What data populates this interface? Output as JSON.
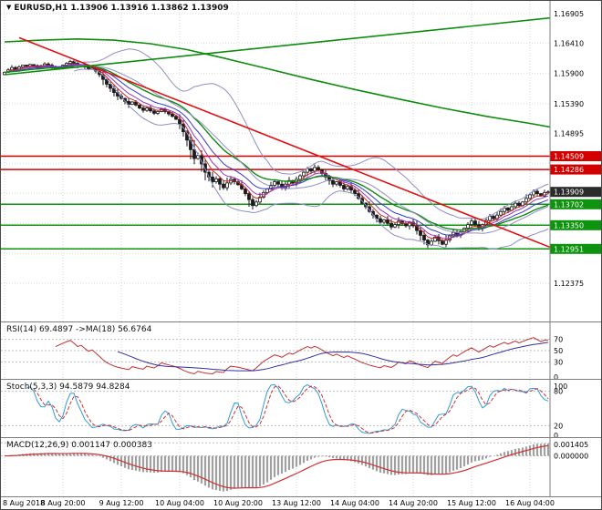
{
  "header": {
    "symbol": "EURUSD,H1",
    "ohlc": "1.13906 1.13916 1.13862 1.13909",
    "dropdown_glyph": "▼"
  },
  "panels": {
    "rsi": {
      "title": "RSI(14) 69.4897 ->MA(18) 56.6764"
    },
    "stoch": {
      "title": "Stoch(5,3,3) 94.5879 94.8284"
    },
    "macd": {
      "title": "MACD(12,26,9) 0.001147 0.000383"
    }
  },
  "chart_data": [
    {
      "type": "candlestick",
      "title": "EURUSD,H1",
      "ylim": [
        1.11732,
        1.17119
      ],
      "x_label_interval": 16,
      "x_labels": [
        "8 Aug 2018",
        "8 Aug 20:00",
        "9 Aug 12:00",
        "10 Aug 04:00",
        "10 Aug 20:00",
        "13 Aug 12:00",
        "14 Aug 04:00",
        "14 Aug 20:00",
        "15 Aug 12:00",
        "16 Aug 04:00"
      ],
      "closes": [
        1.1592,
        1.1596,
        1.16,
        1.1597,
        1.1601,
        1.1604,
        1.1602,
        1.1605,
        1.1603,
        1.16,
        1.1603,
        1.1606,
        1.1604,
        1.1601,
        1.1598,
        1.1601,
        1.1604,
        1.1607,
        1.161,
        1.1607,
        1.1603,
        1.1605,
        1.1601,
        1.1597,
        1.1599,
        1.1594,
        1.1588,
        1.158,
        1.1572,
        1.1565,
        1.1558,
        1.1552,
        1.1548,
        1.1543,
        1.1538,
        1.1542,
        1.1537,
        1.1532,
        1.1528,
        1.1532,
        1.1527,
        1.1523,
        1.1526,
        1.153,
        1.1526,
        1.1522,
        1.1518,
        1.1513,
        1.1505,
        1.1492,
        1.1478,
        1.1462,
        1.1447,
        1.1452,
        1.1438,
        1.1424,
        1.1416,
        1.1408,
        1.1413,
        1.1404,
        1.1398,
        1.1406,
        1.1412,
        1.1408,
        1.1403,
        1.1396,
        1.1388,
        1.1378,
        1.1368,
        1.1374,
        1.1382,
        1.139,
        1.1396,
        1.1402,
        1.1408,
        1.1404,
        1.1398,
        1.1404,
        1.141,
        1.1406,
        1.1412,
        1.1418,
        1.1424,
        1.143,
        1.1426,
        1.1432,
        1.1428,
        1.1422,
        1.1416,
        1.141,
        1.1404,
        1.1408,
        1.1402,
        1.1396,
        1.14,
        1.1394,
        1.1388,
        1.138,
        1.1372,
        1.1366,
        1.1358,
        1.1352,
        1.1346,
        1.134,
        1.1344,
        1.1338,
        1.1332,
        1.1336,
        1.1342,
        1.1338,
        1.1334,
        1.134,
        1.1334,
        1.1326,
        1.1318,
        1.131,
        1.1302,
        1.1308,
        1.1315,
        1.1309,
        1.1303,
        1.131,
        1.1317,
        1.1323,
        1.1318,
        1.1324,
        1.133,
        1.1336,
        1.1342,
        1.1336,
        1.133,
        1.1336,
        1.1343,
        1.135,
        1.1346,
        1.1352,
        1.1358,
        1.1364,
        1.136,
        1.1366,
        1.1372,
        1.1368,
        1.1374,
        1.138,
        1.1386,
        1.1392,
        1.1388,
        1.1384,
        1.139,
        1.1391
      ],
      "wick_scale": 0.00028,
      "y_grid": [
        1.16905,
        1.1641,
        1.159,
        1.1539,
        1.14895,
        1.1439,
        1.13885,
        1.1338,
        1.12875,
        1.12375
      ],
      "y_axis_labels": [
        {
          "v": 1.16905,
          "t": "1.16905"
        },
        {
          "v": 1.1641,
          "t": "1.16410"
        },
        {
          "v": 1.159,
          "t": "1.15900"
        },
        {
          "v": 1.1539,
          "t": "1.15390"
        },
        {
          "v": 1.14895,
          "t": "1.14895"
        },
        {
          "v": 1.12375,
          "t": "1.12375"
        }
      ],
      "price_levels": [
        {
          "value": 1.14509,
          "label": "1.14509",
          "color": "#d40000",
          "kind": "resistance"
        },
        {
          "value": 1.14286,
          "label": "1.14286",
          "color": "#d40000",
          "kind": "resistance"
        },
        {
          "value": 1.13702,
          "label": "1.13702",
          "color": "#0d930d",
          "kind": "support"
        },
        {
          "value": 1.1335,
          "label": "1.13350",
          "color": "#0d930d",
          "kind": "support"
        },
        {
          "value": 1.12951,
          "label": "1.12951",
          "color": "#0d930d",
          "kind": "support"
        }
      ],
      "current_price": {
        "value": 1.13909,
        "label": "1.13909",
        "bg": "#2b2b2b"
      },
      "colors": {
        "bull_fill": "#ffffff",
        "bear_fill": "#1a1a1a",
        "candle_stroke": "#1a1a1a",
        "grid": "#d9d9d9"
      },
      "overlays": [
        {
          "name": "ema-fast-red",
          "type": "ema",
          "period": 5,
          "color": "#cc2a2a",
          "width": 1
        },
        {
          "name": "ema-fast-purple",
          "type": "ema",
          "period": 8,
          "color": "#9933bb",
          "width": 1
        },
        {
          "name": "ema-fast-blue",
          "type": "ema",
          "period": 13,
          "color": "#3a3acc",
          "width": 1
        },
        {
          "name": "ema-mid-green",
          "type": "ema",
          "period": 21,
          "color": "#128a12",
          "width": 1.4
        },
        {
          "name": "bollinger-bands",
          "type": "bollinger",
          "period": 20,
          "dev": 2,
          "color": "#8f8fc4",
          "width": 1
        }
      ],
      "polylines": [
        {
          "name": "slow-ma-green",
          "color": "#0e8c0e",
          "width": 1.6,
          "points": [
            [
              0,
              1.1643
            ],
            [
              10,
              1.1646
            ],
            [
              20,
              1.1648
            ],
            [
              30,
              1.1646
            ],
            [
              40,
              1.164
            ],
            [
              50,
              1.163
            ],
            [
              60,
              1.1616
            ],
            [
              72,
              1.1598
            ],
            [
              84,
              1.158
            ],
            [
              96,
              1.1563
            ],
            [
              108,
              1.1547
            ],
            [
              120,
              1.1532
            ],
            [
              132,
              1.1518
            ],
            [
              144,
              1.1506
            ],
            [
              157,
              1.1492
            ]
          ]
        }
      ],
      "trendlines": [
        {
          "name": "downtrend-line",
          "color": "#e01010",
          "width": 1.6,
          "points": [
            [
              4,
              1.165
            ],
            [
              152,
              1.1292
            ]
          ]
        },
        {
          "name": "uptrend-line",
          "color": "#0e8c0e",
          "width": 1.6,
          "points": [
            [
              0,
              1.1588
            ],
            [
              157,
              1.1688
            ]
          ]
        }
      ]
    },
    {
      "type": "line",
      "name": "rsi",
      "ylim": [
        0,
        100
      ],
      "period": 14,
      "ma_period": 18,
      "levels": [
        70,
        50,
        30
      ],
      "axis_labels": [
        {
          "v": 70,
          "t": "70"
        },
        {
          "v": 50,
          "t": "50"
        },
        {
          "v": 30,
          "t": "30"
        },
        {
          "v": 0,
          "t": "0"
        }
      ],
      "colors": {
        "rsi": "#c03030",
        "ma": "#3030a0"
      },
      "last_values": {
        "rsi": 69.4897,
        "ma": 56.6764
      }
    },
    {
      "type": "line",
      "name": "stochastic",
      "ylim": [
        0,
        100
      ],
      "k": 5,
      "slowing": 3,
      "d": 3,
      "levels": [
        80,
        20
      ],
      "axis_labels": [
        {
          "v": 100,
          "t": "100"
        },
        {
          "v": 80,
          "t": "80"
        },
        {
          "v": 20,
          "t": "20"
        },
        {
          "v": 0,
          "t": "0"
        }
      ],
      "colors": {
        "k": "#2f9bd8",
        "d": "#d03030"
      },
      "last_values": {
        "k": 94.5879,
        "d": 94.8284
      }
    },
    {
      "type": "macd",
      "name": "macd",
      "fast": 12,
      "slow": 26,
      "signal": 9,
      "axis_labels": [
        {
          "v": 0.001405,
          "t": "0.001405"
        },
        {
          "v": 0,
          "t": "0.000000"
        }
      ],
      "colors": {
        "hist": "#a0a0a0",
        "signal": "#d03030"
      },
      "last_values": {
        "macd": 0.001147,
        "signal": 0.000383
      }
    }
  ]
}
